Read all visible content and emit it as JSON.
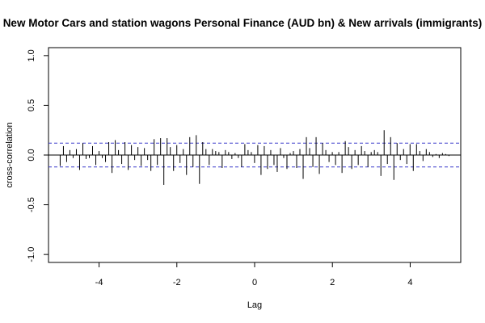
{
  "chart_data": {
    "type": "bar",
    "title": "New Motor Cars and station wagons Personal Finance (AUD bn) & New arrivals (immigrants)",
    "xlabel": "Lag",
    "ylabel": "cross-correlation",
    "xlim": [
      -5.3,
      5.3
    ],
    "ylim": [
      -1.08,
      1.08
    ],
    "xticks": [
      -4,
      -2,
      0,
      2,
      4
    ],
    "xtick_labels": [
      "-4",
      "-2",
      "0",
      "2",
      "4"
    ],
    "yticks": [
      -1.0,
      -0.5,
      0.0,
      0.5,
      1.0
    ],
    "ytick_labels": [
      "-1.0",
      "-0.5",
      "0.0",
      "0.5",
      "1.0"
    ],
    "confidence_band": 0.12,
    "colors": {
      "bars": "#000000",
      "band": "#3a3acc",
      "axes": "#000000"
    },
    "lag_start": -5.0,
    "lag_step": 0.0833,
    "values": [
      -0.11,
      0.09,
      -0.07,
      0.05,
      -0.03,
      0.06,
      -0.15,
      0.12,
      -0.04,
      -0.03,
      0.09,
      -0.1,
      0.04,
      -0.03,
      -0.07,
      0.13,
      -0.18,
      0.15,
      0.05,
      -0.09,
      0.13,
      -0.15,
      0.1,
      -0.05,
      0.08,
      -0.11,
      0.07,
      -0.05,
      -0.16,
      0.16,
      -0.1,
      0.17,
      -0.3,
      0.17,
      0.08,
      -0.16,
      0.1,
      -0.08,
      0.06,
      -0.2,
      0.18,
      -0.12,
      0.2,
      -0.29,
      0.13,
      0.06,
      -0.1,
      0.06,
      0.04,
      0.03,
      -0.13,
      0.05,
      0.03,
      -0.04,
      0.02,
      -0.03,
      -0.12,
      0.11,
      0.05,
      0.03,
      -0.08,
      0.1,
      -0.2,
      0.09,
      -0.14,
      0.05,
      -0.1,
      -0.17,
      0.07,
      -0.03,
      -0.14,
      0.02,
      0.04,
      -0.13,
      0.06,
      -0.24,
      0.18,
      0.07,
      -0.12,
      0.18,
      -0.19,
      0.12,
      0.05,
      -0.07,
      0.03,
      -0.1,
      0.03,
      -0.18,
      0.14,
      0.08,
      -0.14,
      0.05,
      -0.1,
      0.09,
      0.04,
      -0.12,
      0.03,
      0.05,
      0.03,
      -0.21,
      0.25,
      -0.09,
      0.18,
      -0.25,
      0.12,
      -0.05,
      0.06,
      -0.09,
      0.11,
      -0.16,
      0.11,
      0.04,
      -0.06,
      0.06,
      0.03,
      -0.02,
      0.01,
      -0.03,
      0.02,
      0.01,
      -0.01
    ]
  }
}
